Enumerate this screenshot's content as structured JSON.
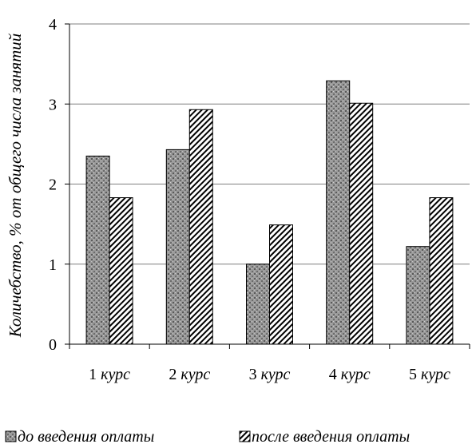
{
  "chart_data": {
    "type": "bar",
    "ylabel": "Количебство, % от общего числа занятий",
    "ylim": [
      0,
      4
    ],
    "yticks": [
      0,
      1,
      2,
      3,
      4
    ],
    "grid": true,
    "legend_position": "bottom",
    "categories": [
      {
        "num": "1",
        "word": "курс"
      },
      {
        "num": "2",
        "word": "курс"
      },
      {
        "num": "3",
        "word": "курс"
      },
      {
        "num": "4",
        "word": "курс"
      },
      {
        "num": "5",
        "word": "курс"
      }
    ],
    "series": [
      {
        "name": "до введения оплаты",
        "values": [
          2.35,
          2.43,
          1.0,
          3.29,
          1.22
        ],
        "pattern": "dotted-gray"
      },
      {
        "name": "после введения оплаты",
        "values": [
          1.83,
          2.93,
          1.49,
          3.01,
          1.83
        ],
        "pattern": "diagonal-hatch"
      }
    ]
  }
}
